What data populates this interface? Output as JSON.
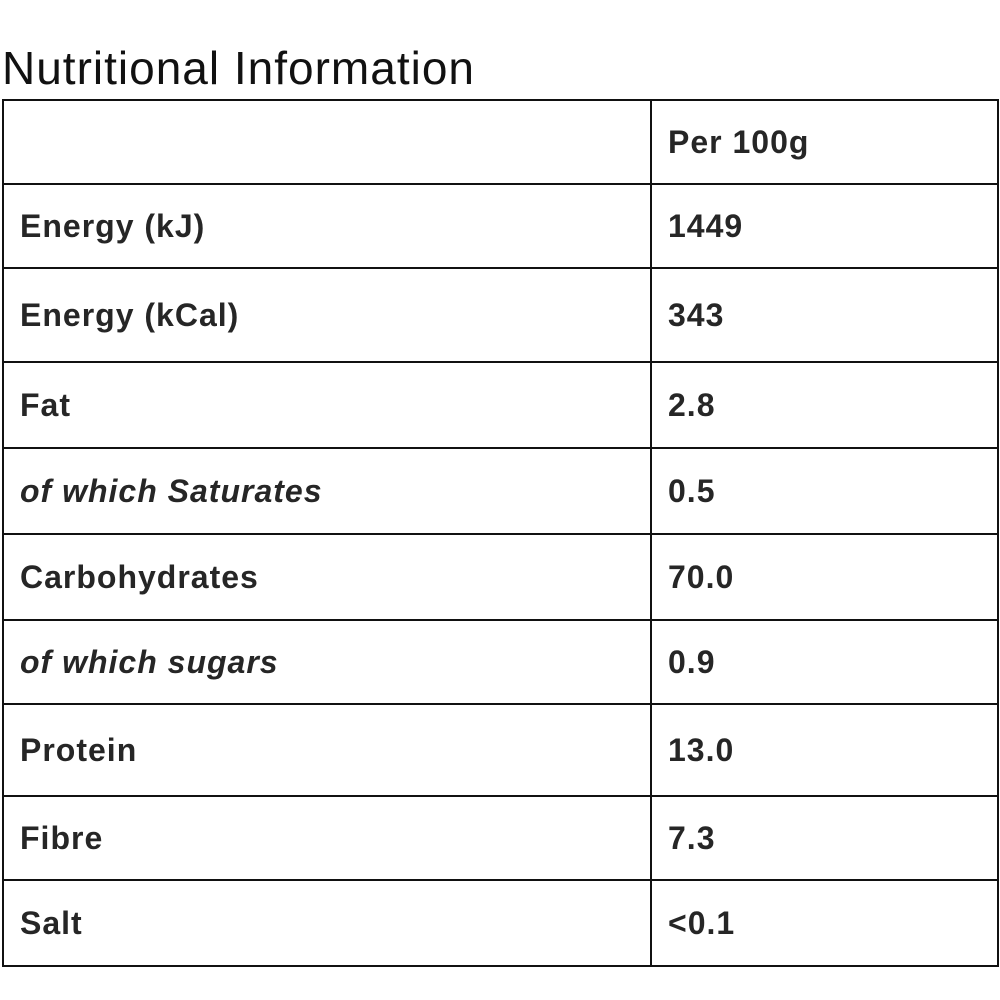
{
  "title": "Nutritional Information",
  "table": {
    "header": {
      "label": "",
      "value": "Per 100g"
    },
    "rows": [
      {
        "label": "Energy (kJ)",
        "value": "1449"
      },
      {
        "label": "Energy (kCal)",
        "value": "343"
      },
      {
        "label": "Fat",
        "value": "2.8"
      },
      {
        "label": "of which Saturates",
        "value": "0.5"
      },
      {
        "label": "Carbohydrates",
        "value": "70.0"
      },
      {
        "label": "of which sugars",
        "value": "0.9"
      },
      {
        "label": "Protein",
        "value": "13.0"
      },
      {
        "label": "Fibre",
        "value": "7.3"
      },
      {
        "label": "Salt",
        "value": "<0.1"
      }
    ]
  }
}
